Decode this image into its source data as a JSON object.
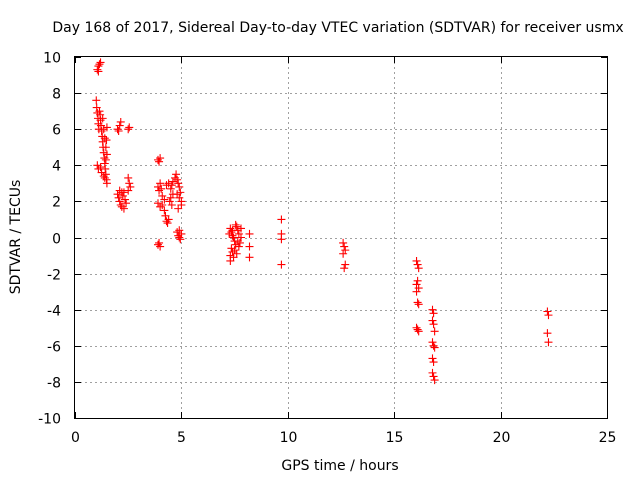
{
  "chart_data": {
    "type": "scatter",
    "title": "Day 168 of 2017, Sidereal Day-to-day VTEC variation (SDTVAR) for receiver usmx",
    "xlabel": "GPS time / hours",
    "ylabel": "SDTVAR / TECUs",
    "xlim": [
      0,
      25
    ],
    "ylim": [
      -10,
      10
    ],
    "x_ticks": [
      0,
      5,
      10,
      15,
      20,
      25
    ],
    "y_ticks": [
      -10,
      -8,
      -6,
      -4,
      -2,
      0,
      2,
      4,
      6,
      8,
      10
    ],
    "x_tick_labels": [
      "0",
      "5",
      "10",
      "15",
      "20",
      "25"
    ],
    "y_tick_labels": [
      "-10",
      "-8",
      "-6",
      "-4",
      "-2",
      "0",
      "2",
      "4",
      "6",
      "8",
      "10"
    ],
    "grid": true,
    "marker": "plus",
    "series": [
      {
        "name": "SDTVAR",
        "color": "#ff0000",
        "points": [
          [
            1.05,
            9.3
          ],
          [
            1.1,
            9.5
          ],
          [
            1.15,
            9.6
          ],
          [
            1.2,
            9.7
          ],
          [
            1.1,
            9.2
          ],
          [
            1.0,
            7.6
          ],
          [
            1.02,
            7.2
          ],
          [
            1.05,
            6.9
          ],
          [
            1.08,
            6.6
          ],
          [
            1.1,
            6.3
          ],
          [
            1.12,
            6.0
          ],
          [
            1.15,
            7.0
          ],
          [
            1.18,
            6.8
          ],
          [
            1.2,
            6.5
          ],
          [
            1.22,
            6.2
          ],
          [
            1.25,
            5.9
          ],
          [
            1.28,
            5.6
          ],
          [
            1.3,
            5.3
          ],
          [
            1.32,
            5.0
          ],
          [
            1.35,
            4.7
          ],
          [
            1.38,
            4.4
          ],
          [
            1.4,
            4.1
          ],
          [
            1.42,
            3.8
          ],
          [
            1.45,
            3.5
          ],
          [
            1.48,
            3.2
          ],
          [
            1.5,
            3.0
          ],
          [
            1.3,
            6.6
          ],
          [
            1.35,
            6.0
          ],
          [
            1.4,
            5.5
          ],
          [
            1.45,
            5.0
          ],
          [
            1.5,
            4.6
          ],
          [
            1.05,
            4.0
          ],
          [
            1.1,
            3.8
          ],
          [
            1.2,
            3.9
          ],
          [
            1.25,
            3.6
          ],
          [
            1.35,
            3.4
          ],
          [
            1.4,
            3.3
          ],
          [
            1.5,
            6.1
          ],
          [
            1.48,
            5.4
          ],
          [
            1.45,
            4.3
          ],
          [
            2.0,
            6.0
          ],
          [
            2.1,
            6.2
          ],
          [
            2.15,
            6.4
          ],
          [
            2.05,
            5.9
          ],
          [
            2.0,
            2.4
          ],
          [
            2.05,
            2.2
          ],
          [
            2.1,
            2.0
          ],
          [
            2.15,
            1.8
          ],
          [
            2.2,
            1.7
          ],
          [
            2.25,
            2.3
          ],
          [
            2.3,
            2.5
          ],
          [
            2.35,
            2.1
          ],
          [
            2.4,
            1.9
          ],
          [
            2.2,
            2.5
          ],
          [
            2.1,
            2.6
          ],
          [
            2.3,
            1.6
          ],
          [
            2.5,
            6.0
          ],
          [
            2.55,
            6.1
          ],
          [
            2.5,
            3.3
          ],
          [
            2.55,
            3.0
          ],
          [
            2.6,
            2.8
          ],
          [
            2.5,
            2.6
          ],
          [
            3.9,
            4.3
          ],
          [
            3.95,
            4.2
          ],
          [
            4.0,
            4.4
          ],
          [
            3.9,
            2.8
          ],
          [
            3.95,
            2.6
          ],
          [
            4.0,
            3.0
          ],
          [
            4.05,
            2.7
          ],
          [
            3.9,
            1.9
          ],
          [
            4.0,
            1.7
          ],
          [
            4.1,
            1.8
          ],
          [
            4.2,
            1.5
          ],
          [
            4.25,
            1.2
          ],
          [
            4.3,
            0.9
          ],
          [
            4.35,
            0.8
          ],
          [
            4.4,
            1.0
          ],
          [
            4.45,
            2.0
          ],
          [
            4.5,
            2.2
          ],
          [
            4.55,
            1.8
          ],
          [
            4.6,
            2.4
          ],
          [
            4.3,
            2.9
          ],
          [
            4.4,
            3.0
          ],
          [
            4.5,
            2.7
          ],
          [
            4.55,
            2.9
          ],
          [
            4.6,
            3.1
          ],
          [
            4.7,
            3.3
          ],
          [
            4.75,
            3.5
          ],
          [
            4.8,
            3.2
          ],
          [
            4.85,
            3.0
          ],
          [
            4.9,
            2.8
          ],
          [
            4.95,
            2.5
          ],
          [
            4.8,
            2.4
          ],
          [
            4.9,
            2.2
          ],
          [
            5.0,
            2.0
          ],
          [
            5.0,
            1.8
          ],
          [
            4.85,
            1.6
          ],
          [
            4.2,
            2.1
          ],
          [
            4.1,
            2.3
          ],
          [
            3.95,
            -0.3
          ],
          [
            4.0,
            -0.5
          ],
          [
            3.9,
            -0.4
          ],
          [
            4.8,
            0.3
          ],
          [
            4.85,
            0.1
          ],
          [
            4.9,
            0.0
          ],
          [
            4.95,
            -0.1
          ],
          [
            5.0,
            0.2
          ],
          [
            4.9,
            0.4
          ],
          [
            7.3,
            0.5
          ],
          [
            7.35,
            0.3
          ],
          [
            7.4,
            0.1
          ],
          [
            7.45,
            0.0
          ],
          [
            7.5,
            -0.2
          ],
          [
            7.55,
            -0.4
          ],
          [
            7.6,
            0.6
          ],
          [
            7.65,
            0.4
          ],
          [
            7.7,
            0.2
          ],
          [
            7.35,
            -0.6
          ],
          [
            7.4,
            -0.8
          ],
          [
            7.3,
            -1.0
          ],
          [
            7.3,
            -1.3
          ],
          [
            7.45,
            -1.1
          ],
          [
            7.5,
            -0.7
          ],
          [
            7.6,
            -0.9
          ],
          [
            7.7,
            -0.5
          ],
          [
            7.75,
            -0.3
          ],
          [
            7.8,
            0.0
          ],
          [
            7.8,
            0.5
          ],
          [
            7.55,
            0.7
          ],
          [
            7.4,
            0.4
          ],
          [
            7.25,
            0.2
          ],
          [
            7.65,
            -0.2
          ],
          [
            8.2,
            0.2
          ],
          [
            8.2,
            -0.5
          ],
          [
            8.2,
            -1.1
          ],
          [
            9.7,
            1.0
          ],
          [
            9.7,
            0.2
          ],
          [
            9.7,
            -0.1
          ],
          [
            9.7,
            -1.5
          ],
          [
            12.6,
            -0.3
          ],
          [
            12.65,
            -0.5
          ],
          [
            12.7,
            -0.7
          ],
          [
            12.6,
            -0.9
          ],
          [
            12.7,
            -1.5
          ],
          [
            12.65,
            -1.7
          ],
          [
            16.05,
            -1.3
          ],
          [
            16.1,
            -1.5
          ],
          [
            16.15,
            -1.7
          ],
          [
            16.1,
            -2.4
          ],
          [
            16.05,
            -2.6
          ],
          [
            16.15,
            -2.8
          ],
          [
            16.05,
            -3.0
          ],
          [
            16.1,
            -3.6
          ],
          [
            16.15,
            -3.7
          ],
          [
            16.05,
            -5.0
          ],
          [
            16.1,
            -5.1
          ],
          [
            16.15,
            -5.2
          ],
          [
            16.8,
            -4.0
          ],
          [
            16.85,
            -4.2
          ],
          [
            16.8,
            -4.6
          ],
          [
            16.85,
            -4.8
          ],
          [
            16.9,
            -5.2
          ],
          [
            16.8,
            -5.8
          ],
          [
            16.85,
            -6.0
          ],
          [
            16.9,
            -6.1
          ],
          [
            16.8,
            -6.7
          ],
          [
            16.85,
            -6.9
          ],
          [
            16.8,
            -7.5
          ],
          [
            16.85,
            -7.7
          ],
          [
            16.9,
            -7.9
          ],
          [
            22.2,
            -4.1
          ],
          [
            22.25,
            -4.3
          ],
          [
            22.2,
            -5.3
          ],
          [
            22.25,
            -5.8
          ]
        ]
      }
    ]
  }
}
